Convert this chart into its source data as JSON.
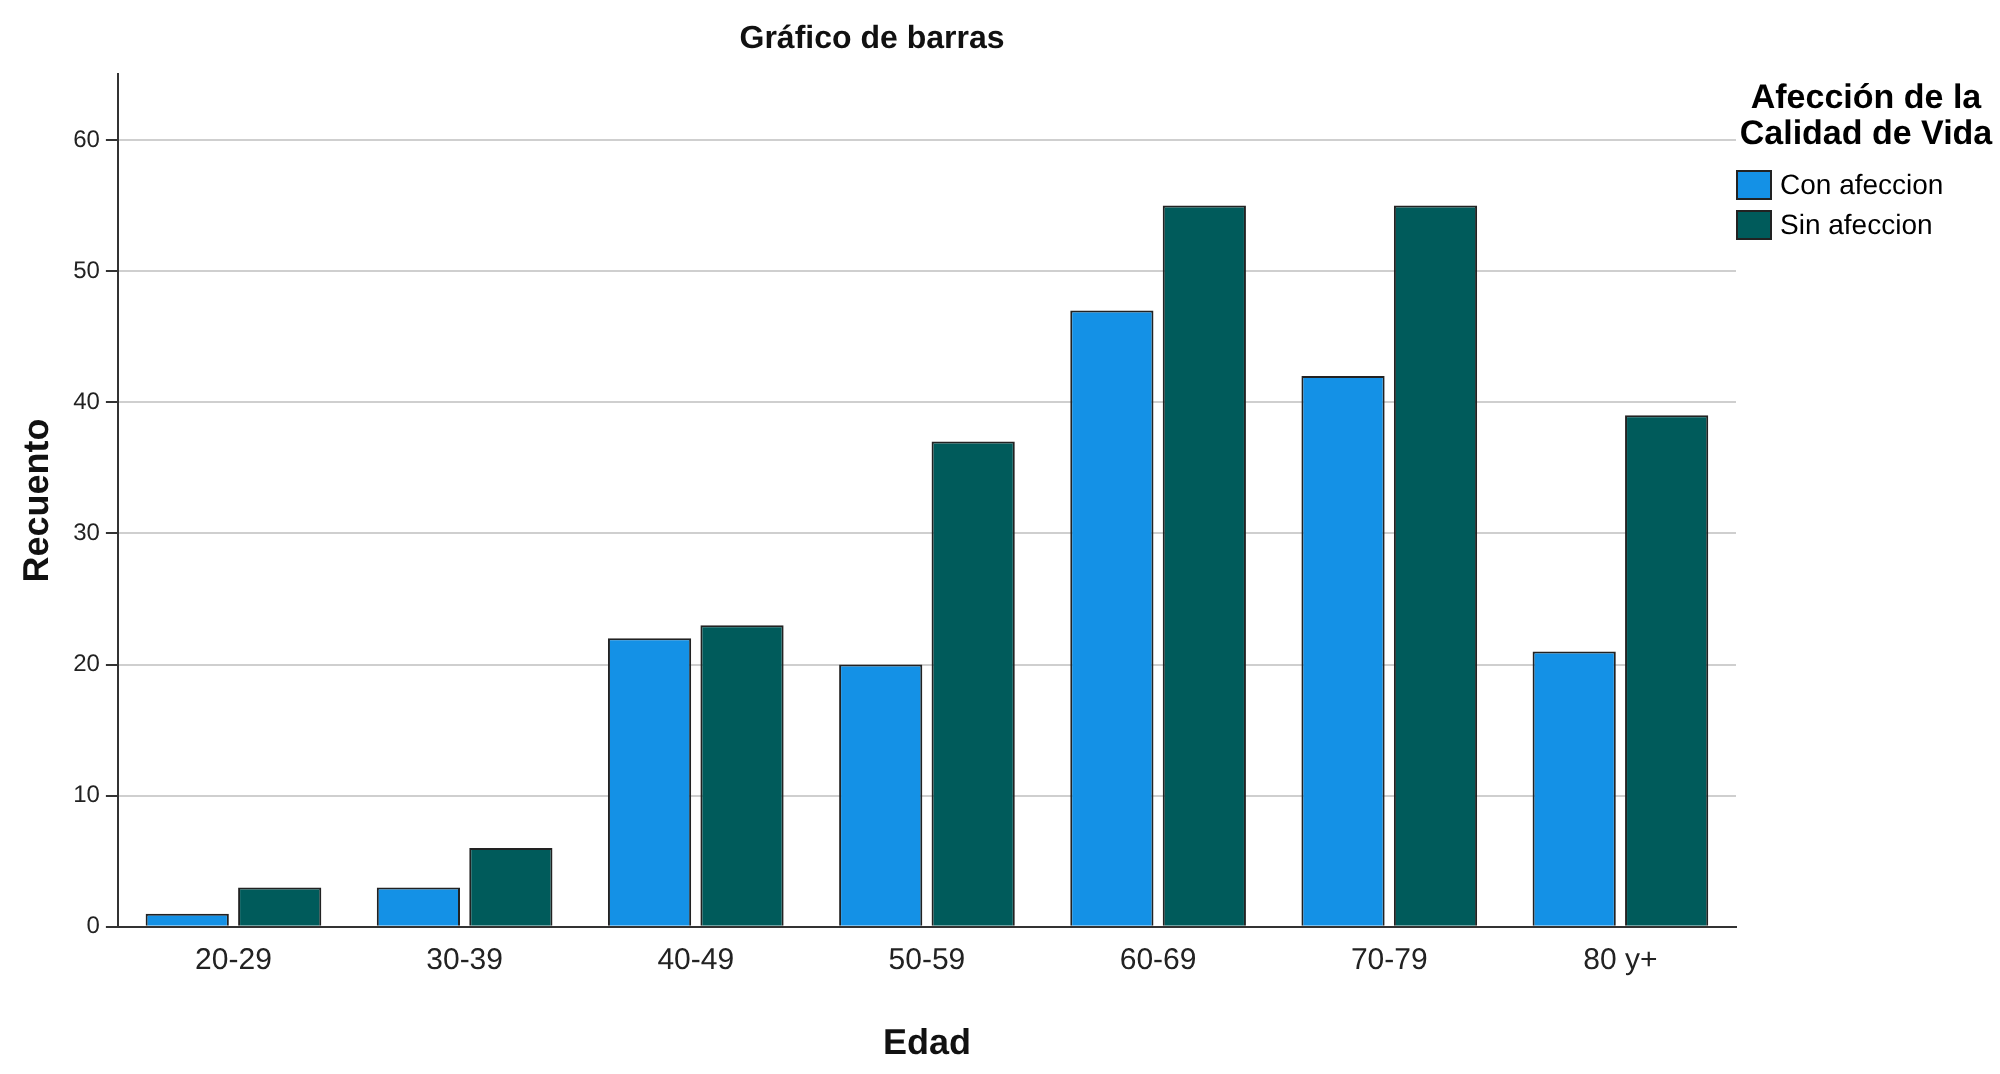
{
  "chart_data": {
    "type": "bar",
    "title": "Gráfico de barras",
    "xlabel": "Edad",
    "ylabel": "Recuento",
    "legend_title": "Afección de la Calidad de Vida",
    "categories": [
      "20-29",
      "30-39",
      "40-49",
      "50-59",
      "60-69",
      "70-79",
      "80 y+"
    ],
    "series": [
      {
        "name": "Con afeccion",
        "color": "#1491e6",
        "values": [
          1,
          3,
          22,
          20,
          47,
          42,
          21
        ]
      },
      {
        "name": "Sin afeccion",
        "color": "#005b5b",
        "values": [
          3,
          6,
          23,
          37,
          55,
          55,
          39
        ]
      }
    ],
    "ylim": [
      0,
      65
    ],
    "yticks": [
      0,
      10,
      20,
      30,
      40,
      50,
      60
    ],
    "grid": "y",
    "legend": "top right"
  }
}
